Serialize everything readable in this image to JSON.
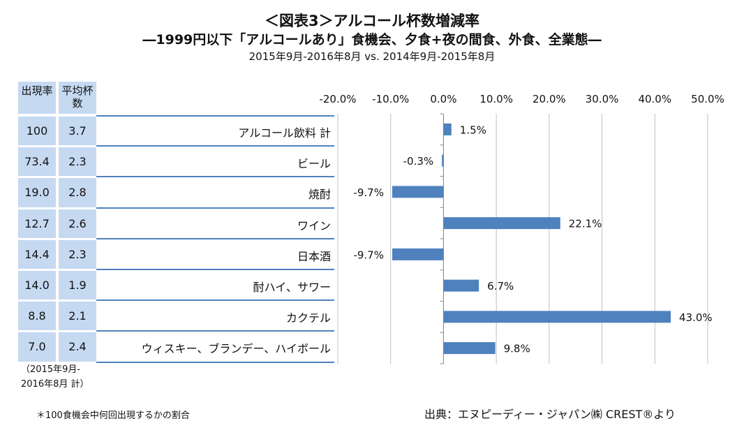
{
  "title": {
    "main": "＜図表3＞アルコール杯数増減率",
    "sub": "―1999円以下「アルコールあり」食機会、夕食+夜の間食、外食、全業態―",
    "period": "2015年9月-2016年8月 vs. 2014年9月-2015年8月"
  },
  "table": {
    "header_rate": "出現率",
    "header_avg": "平均杯数",
    "rows": [
      {
        "category": "アルコール飲料 計",
        "rate": "100",
        "avg": "3.7"
      },
      {
        "category": "ビール",
        "rate": "73.4",
        "avg": "2.3"
      },
      {
        "category": "焼酎",
        "rate": "19.0",
        "avg": "2.8"
      },
      {
        "category": "ワイン",
        "rate": "12.7",
        "avg": "2.6"
      },
      {
        "category": "日本酒",
        "rate": "14.4",
        "avg": "2.3"
      },
      {
        "category": "酎ハイ、サワー",
        "rate": "14.0",
        "avg": "1.9"
      },
      {
        "category": "カクテル",
        "rate": "8.8",
        "avg": "2.1"
      },
      {
        "category": "ウィスキー、ブランデー、ハイボール",
        "rate": "7.0",
        "avg": "2.4"
      }
    ],
    "footnote_period_1": "（2015年9月-",
    "footnote_period_2": "2016年8月 計）"
  },
  "chart_data": {
    "type": "bar",
    "orientation": "horizontal",
    "categories": [
      "アルコール飲料 計",
      "ビール",
      "焼酎",
      "ワイン",
      "日本酒",
      "酎ハイ、サワー",
      "カクテル",
      "ウィスキー、ブランデー、ハイボール"
    ],
    "values": [
      1.5,
      -0.3,
      -9.7,
      22.1,
      -9.7,
      6.7,
      43.0,
      9.8
    ],
    "data_labels": [
      "1.5%",
      "-0.3%",
      "-9.7%",
      "22.1%",
      "-9.7%",
      "6.7%",
      "43.0%",
      "9.8%"
    ],
    "xlim": [
      -20,
      50
    ],
    "ticks": [
      -20,
      -10,
      0,
      10,
      20,
      30,
      40,
      50
    ],
    "tick_labels": [
      "-20.0%",
      "-10.0%",
      "0.0%",
      "10.0%",
      "20.0%",
      "30.0%",
      "40.0%",
      "50.0%"
    ],
    "grid": true,
    "bar_color": "#4f81bd",
    "grid_color": "#bfbfbf"
  },
  "notes": {
    "left": "＊100食機会中何回出現するかの割合",
    "source": "出典：エヌピーディー・ジャパン㈱ CREST®より"
  }
}
